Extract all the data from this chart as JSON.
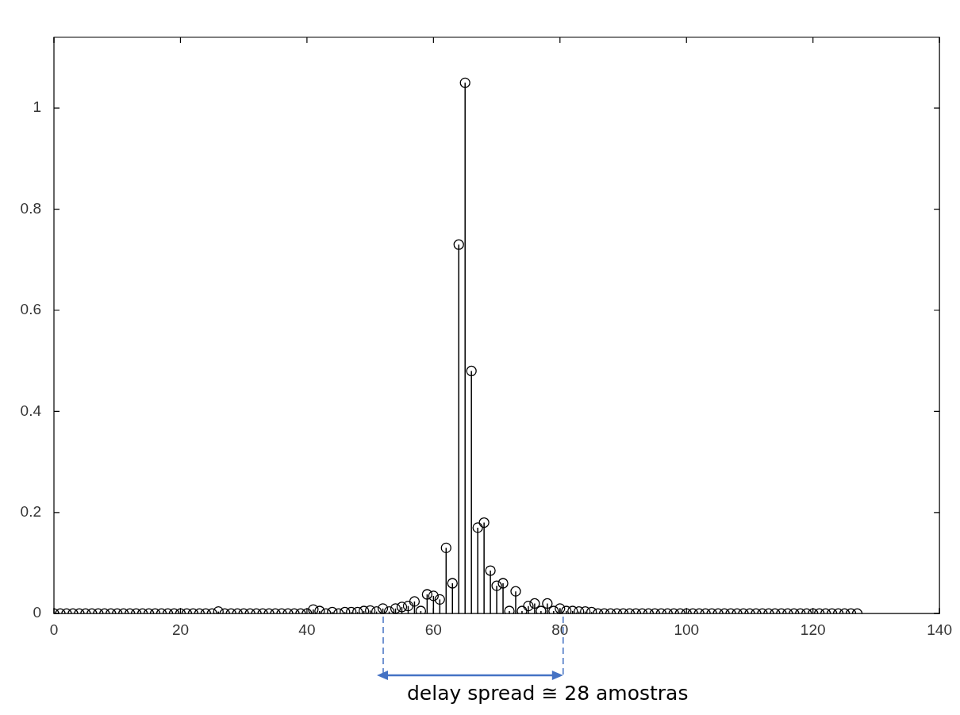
{
  "chart_data": {
    "type": "lollipop",
    "color": "#000000",
    "marker": "circle",
    "x": [
      0,
      1,
      2,
      3,
      4,
      5,
      6,
      7,
      8,
      9,
      10,
      11,
      12,
      13,
      14,
      15,
      16,
      17,
      18,
      19,
      20,
      21,
      22,
      23,
      24,
      25,
      26,
      27,
      28,
      29,
      30,
      31,
      32,
      33,
      34,
      35,
      36,
      37,
      38,
      39,
      40,
      41,
      42,
      43,
      44,
      45,
      46,
      47,
      48,
      49,
      50,
      51,
      52,
      53,
      54,
      55,
      56,
      57,
      58,
      59,
      60,
      61,
      62,
      63,
      64,
      65,
      66,
      67,
      68,
      69,
      70,
      71,
      72,
      73,
      74,
      75,
      76,
      77,
      78,
      79,
      80,
      81,
      82,
      83,
      84,
      85,
      86,
      87,
      88,
      89,
      90,
      91,
      92,
      93,
      94,
      95,
      96,
      97,
      98,
      99,
      100,
      101,
      102,
      103,
      104,
      105,
      106,
      107,
      108,
      109,
      110,
      111,
      112,
      113,
      114,
      115,
      116,
      117,
      118,
      119,
      120,
      121,
      122,
      123,
      124,
      125,
      126,
      127
    ],
    "values": [
      0,
      0,
      0,
      0,
      0,
      0,
      0,
      0,
      0,
      0,
      0,
      0,
      0,
      0,
      0,
      0,
      0,
      0,
      0,
      0,
      0,
      0,
      0,
      0,
      0,
      0,
      0.004,
      0,
      0,
      0,
      0,
      0,
      0,
      0,
      0,
      0,
      0,
      0,
      0,
      0,
      0,
      0.008,
      0.005,
      0,
      0.003,
      0,
      0.003,
      0.003,
      0.003,
      0.005,
      0.006,
      0.004,
      0.01,
      0.004,
      0.01,
      0.013,
      0.015,
      0.024,
      0.005,
      0.038,
      0.035,
      0.028,
      0.13,
      0.06,
      0.73,
      1.05,
      0.48,
      0.17,
      0.18,
      0.085,
      0.055,
      0.06,
      0.005,
      0.044,
      0.005,
      0.015,
      0.02,
      0.005,
      0.02,
      0.005,
      0.01,
      0.005,
      0.005,
      0.004,
      0.004,
      0.003,
      0,
      0,
      0,
      0,
      0,
      0,
      0,
      0,
      0,
      0,
      0,
      0,
      0,
      0,
      0,
      0,
      0,
      0,
      0,
      0,
      0,
      0,
      0,
      0,
      0,
      0,
      0,
      0,
      0,
      0,
      0,
      0,
      0,
      0,
      0,
      0,
      0,
      0,
      0,
      0,
      0,
      0
    ],
    "xlim": [
      0,
      140
    ],
    "xticks": [
      0,
      20,
      40,
      60,
      80,
      100,
      120,
      140
    ],
    "ylim": [
      0,
      1.14
    ],
    "yticks": [
      0,
      0.2,
      0.4,
      0.6,
      0.8,
      1
    ],
    "annotations": [
      "delay spread ≅ 28 amostras"
    ]
  }
}
